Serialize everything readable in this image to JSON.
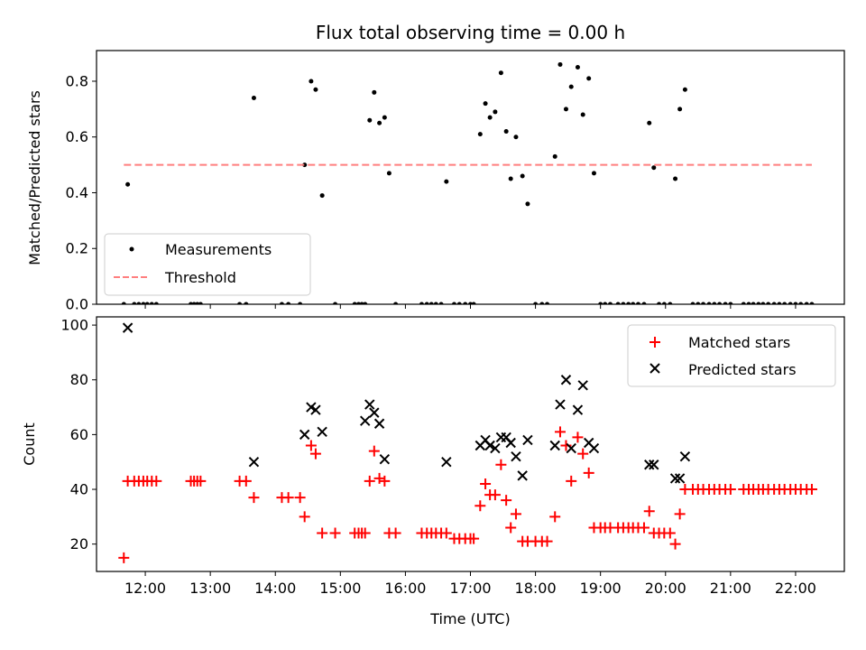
{
  "chart_data": [
    {
      "type": "scatter",
      "title": "Flux total observing time = 0.00 h",
      "xlabel": "",
      "ylabel": "Matched/Predicted stars",
      "xlim": [
        11.25,
        22.75
      ],
      "ylim": [
        0,
        0.91
      ],
      "yticks": [
        0.0,
        0.2,
        0.4,
        0.6,
        0.8
      ],
      "ytick_labels": [
        "0.0",
        "0.2",
        "0.4",
        "0.6",
        "0.8"
      ],
      "legend_position": "lower-left",
      "series": [
        {
          "name": "Measurements",
          "marker": "dot",
          "color": "#000000",
          "x": [
            11.67,
            11.73,
            11.83,
            11.9,
            11.97,
            12.03,
            12.1,
            12.17,
            12.7,
            12.75,
            12.8,
            12.85,
            13.45,
            13.55,
            13.67,
            14.1,
            14.2,
            14.38,
            14.45,
            14.55,
            14.62,
            14.72,
            14.92,
            15.22,
            15.28,
            15.33,
            15.38,
            15.45,
            15.52,
            15.6,
            15.68,
            15.75,
            15.85,
            16.25,
            16.33,
            16.4,
            16.47,
            16.55,
            16.63,
            16.75,
            16.83,
            16.92,
            17.0,
            17.05,
            17.15,
            17.23,
            17.3,
            17.38,
            17.47,
            17.55,
            17.62,
            17.7,
            17.8,
            17.88,
            18.0,
            18.1,
            18.18,
            18.3,
            18.38,
            18.47,
            18.55,
            18.65,
            18.73,
            18.82,
            18.9,
            19.0,
            19.07,
            19.15,
            19.27,
            19.35,
            19.43,
            19.5,
            19.58,
            19.67,
            19.75,
            19.82,
            19.9,
            19.98,
            20.07,
            20.15,
            20.22,
            20.3,
            20.42,
            20.5,
            20.58,
            20.67,
            20.75,
            20.83,
            20.92,
            21.0,
            21.2,
            21.28,
            21.35,
            21.43,
            21.5,
            21.58,
            21.67,
            21.75,
            21.83,
            21.92,
            22.0,
            22.08,
            22.17,
            22.25
          ],
          "y": [
            0.0,
            0.43,
            0.0,
            0.0,
            0.0,
            0.0,
            0.0,
            0.0,
            0.0,
            0.0,
            0.0,
            0.0,
            0.0,
            0.0,
            0.74,
            0.0,
            0.0,
            0.0,
            0.5,
            0.8,
            0.77,
            0.39,
            0.0,
            0.0,
            0.0,
            0.0,
            0.0,
            0.66,
            0.76,
            0.65,
            0.67,
            0.47,
            0.0,
            0.0,
            0.0,
            0.0,
            0.0,
            0.0,
            0.44,
            0.0,
            0.0,
            0.0,
            0.0,
            0.0,
            0.61,
            0.72,
            0.67,
            0.69,
            0.83,
            0.62,
            0.45,
            0.6,
            0.46,
            0.36,
            0.0,
            0.0,
            0.0,
            0.53,
            0.86,
            0.7,
            0.78,
            0.85,
            0.68,
            0.81,
            0.47,
            0.0,
            0.0,
            0.0,
            0.0,
            0.0,
            0.0,
            0.0,
            0.0,
            0.0,
            0.65,
            0.49,
            0.0,
            0.0,
            0.0,
            0.45,
            0.7,
            0.77,
            0.0,
            0.0,
            0.0,
            0.0,
            0.0,
            0.0,
            0.0,
            0.0,
            0.0,
            0.0,
            0.0,
            0.0,
            0.0,
            0.0,
            0.0,
            0.0,
            0.0,
            0.0,
            0.0,
            0.0,
            0.0,
            0.0
          ]
        },
        {
          "name": "Threshold",
          "marker": "dashed-line",
          "color": "#ff7f7f",
          "x": [
            11.67,
            22.25
          ],
          "y": [
            0.5,
            0.5
          ]
        }
      ]
    },
    {
      "type": "scatter",
      "title": "",
      "xlabel": "Time (UTC)",
      "ylabel": "Count",
      "xlim": [
        11.25,
        22.75
      ],
      "ylim": [
        10,
        103
      ],
      "xticks": [
        12,
        13,
        14,
        15,
        16,
        17,
        18,
        19,
        20,
        21,
        22
      ],
      "xtick_labels": [
        "12:00",
        "13:00",
        "14:00",
        "15:00",
        "16:00",
        "17:00",
        "18:00",
        "19:00",
        "20:00",
        "21:00",
        "22:00"
      ],
      "yticks": [
        20,
        40,
        60,
        80,
        100
      ],
      "ytick_labels": [
        "20",
        "40",
        "60",
        "80",
        "100"
      ],
      "legend_position": "top-right",
      "series": [
        {
          "name": "Matched stars",
          "marker": "plus",
          "color": "#ff0000",
          "x": [
            11.67,
            11.73,
            11.83,
            11.9,
            11.97,
            12.03,
            12.1,
            12.17,
            12.7,
            12.75,
            12.8,
            12.85,
            13.45,
            13.55,
            13.67,
            14.1,
            14.2,
            14.38,
            14.45,
            14.55,
            14.62,
            14.72,
            14.92,
            15.22,
            15.28,
            15.33,
            15.38,
            15.45,
            15.52,
            15.6,
            15.68,
            15.75,
            15.85,
            16.25,
            16.33,
            16.4,
            16.47,
            16.55,
            16.63,
            16.75,
            16.83,
            16.92,
            17.0,
            17.05,
            17.15,
            17.23,
            17.3,
            17.38,
            17.47,
            17.55,
            17.62,
            17.7,
            17.8,
            17.88,
            18.0,
            18.1,
            18.18,
            18.3,
            18.38,
            18.47,
            18.55,
            18.65,
            18.73,
            18.82,
            18.9,
            19.0,
            19.07,
            19.15,
            19.27,
            19.35,
            19.43,
            19.5,
            19.58,
            19.67,
            19.75,
            19.82,
            19.9,
            19.98,
            20.07,
            20.15,
            20.22,
            20.3,
            20.42,
            20.5,
            20.58,
            20.67,
            20.75,
            20.83,
            20.92,
            21.0,
            21.2,
            21.28,
            21.35,
            21.43,
            21.5,
            21.58,
            21.67,
            21.75,
            21.83,
            21.92,
            22.0,
            22.08,
            22.17,
            22.25
          ],
          "y": [
            15,
            43,
            43,
            43,
            43,
            43,
            43,
            43,
            43,
            43,
            43,
            43,
            43,
            43,
            37,
            37,
            37,
            37,
            30,
            56,
            53,
            24,
            24,
            24,
            24,
            24,
            24,
            43,
            54,
            44,
            43,
            24,
            24,
            24,
            24,
            24,
            24,
            24,
            24,
            22,
            22,
            22,
            22,
            22,
            34,
            42,
            38,
            38,
            49,
            36,
            26,
            31,
            21,
            21,
            21,
            21,
            21,
            30,
            61,
            56,
            43,
            59,
            53,
            46,
            26,
            26,
            26,
            26,
            26,
            26,
            26,
            26,
            26,
            26,
            32,
            24,
            24,
            24,
            24,
            20,
            31,
            40,
            40,
            40,
            40,
            40,
            40,
            40,
            40,
            40,
            40,
            40,
            40,
            40,
            40,
            40,
            40,
            40,
            40,
            40,
            40,
            40,
            40,
            40
          ]
        },
        {
          "name": "Predicted stars",
          "marker": "x",
          "color": "#000000",
          "x": [
            11.73,
            13.67,
            14.45,
            14.55,
            14.62,
            14.72,
            15.38,
            15.45,
            15.52,
            15.6,
            15.68,
            16.63,
            17.15,
            17.23,
            17.3,
            17.38,
            17.47,
            17.55,
            17.62,
            17.7,
            17.8,
            17.88,
            18.3,
            18.38,
            18.47,
            18.55,
            18.65,
            18.73,
            18.82,
            18.9,
            19.75,
            19.82,
            20.15,
            20.22,
            20.3
          ],
          "y": [
            99,
            50,
            60,
            70,
            69,
            61,
            65,
            71,
            68,
            64,
            51,
            50,
            56,
            58,
            56,
            55,
            59,
            59,
            57,
            52,
            45,
            58,
            56,
            71,
            80,
            55,
            69,
            78,
            57,
            55,
            49,
            49,
            44,
            44,
            52
          ]
        }
      ]
    }
  ]
}
